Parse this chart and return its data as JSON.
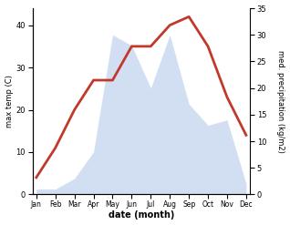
{
  "months": [
    "Jan",
    "Feb",
    "Mar",
    "Apr",
    "May",
    "Jun",
    "Jul",
    "Aug",
    "Sep",
    "Oct",
    "Nov",
    "Dec"
  ],
  "temperature": [
    4,
    11,
    20,
    27,
    27,
    35,
    35,
    40,
    42,
    35,
    23,
    14
  ],
  "precipitation": [
    1,
    1,
    3,
    8,
    30,
    28,
    20,
    30,
    17,
    13,
    14,
    2
  ],
  "temp_color": "#c0392b",
  "precip_color": "#aec6e8",
  "left_ylim": [
    0,
    44
  ],
  "right_ylim": [
    0,
    34
  ],
  "left_yticks": [
    0,
    10,
    20,
    30,
    40
  ],
  "right_yticks": [
    0,
    5,
    10,
    15,
    20,
    25,
    30,
    35
  ],
  "left_ylabel": "max temp (C)",
  "right_ylabel": "med. precipitation (kg/m2)",
  "xlabel": "date (month)",
  "background_color": "#ffffff",
  "temp_linewidth": 2.0,
  "precip_alpha": 0.55
}
